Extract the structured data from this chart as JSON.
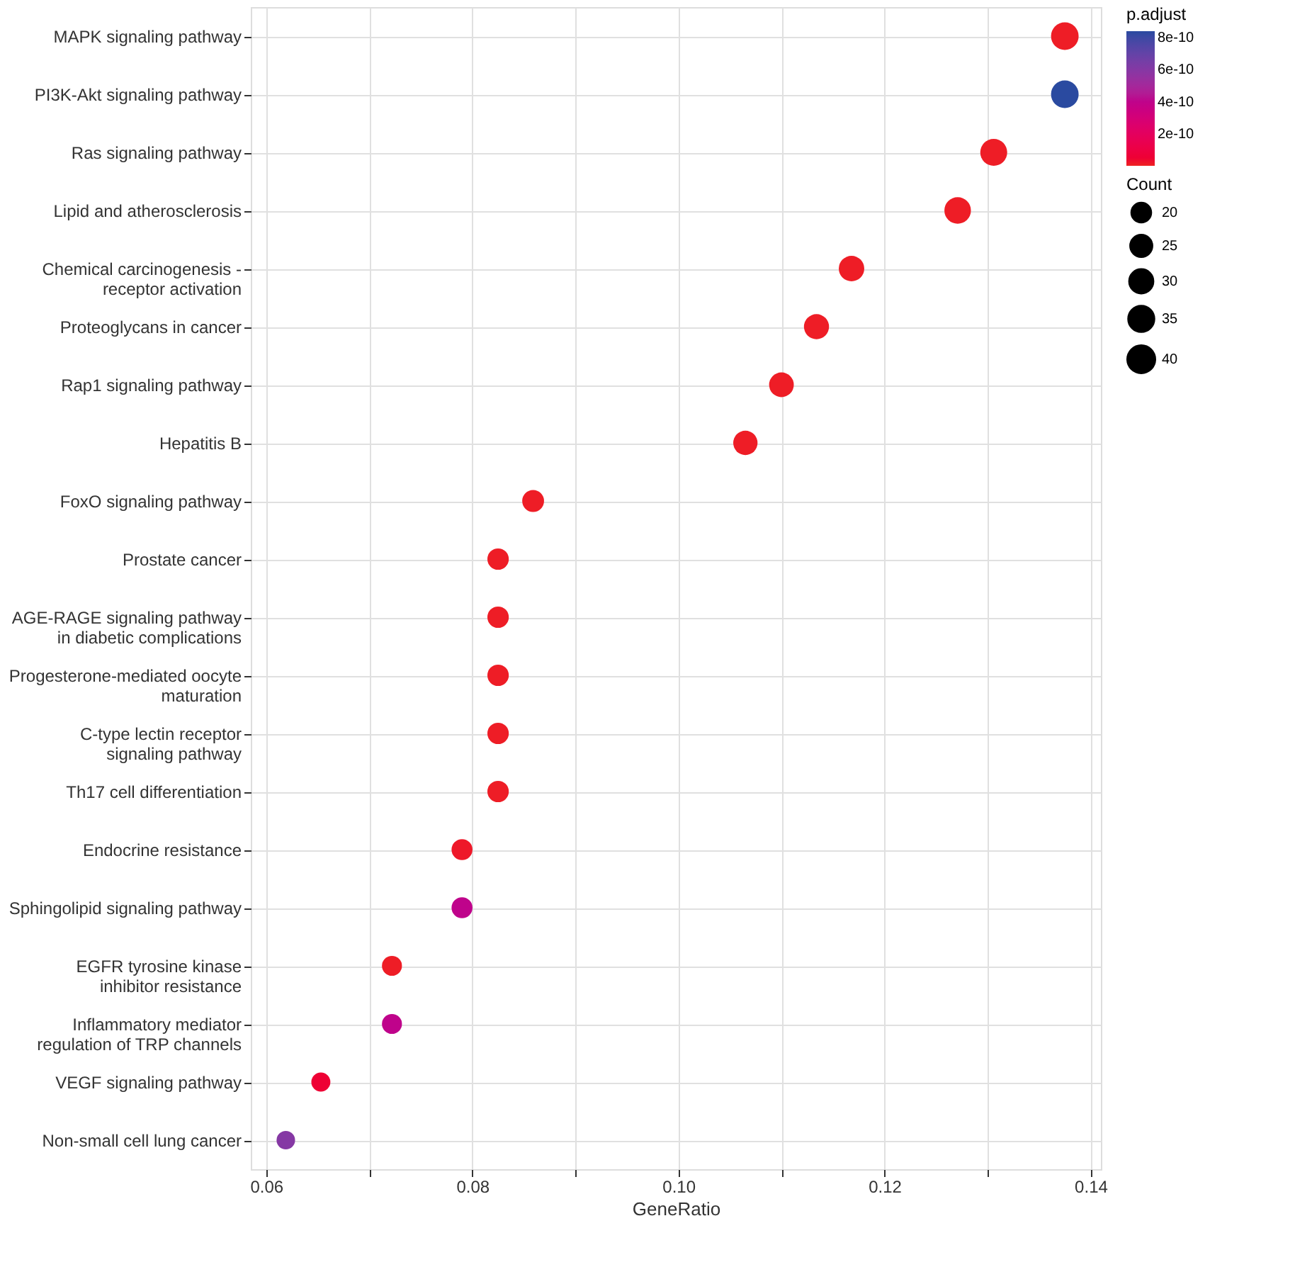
{
  "chart_data": {
    "type": "bubble",
    "categories": [
      "MAPK signaling pathway",
      "PI3K-Akt signaling pathway",
      "Ras signaling pathway",
      "Lipid and atherosclerosis",
      "Chemical carcinogenesis -\nreceptor activation",
      "Proteoglycans in cancer",
      "Rap1 signaling pathway",
      "Hepatitis B",
      "FoxO signaling pathway",
      "Prostate cancer",
      "AGE-RAGE signaling pathway\nin diabetic complications",
      "Progesterone-mediated oocyte\nmaturation",
      "C-type lectin receptor\nsignaling pathway",
      "Th17 cell differentiation",
      "Endocrine resistance",
      "Sphingolipid signaling pathway",
      "EGFR tyrosine kinase\ninhibitor resistance",
      "Inflammatory mediator\nregulation of TRP channels",
      "VEGF signaling pathway",
      "Non-small cell lung cancer"
    ],
    "orientation": "horizontal",
    "values": [
      0.1375,
      0.1375,
      0.1306,
      0.1271,
      0.1168,
      0.1134,
      0.11,
      0.1065,
      0.0859,
      0.0825,
      0.0825,
      0.0825,
      0.0825,
      0.0825,
      0.079,
      0.079,
      0.0722,
      0.0722,
      0.0653,
      0.0619
    ],
    "sizes": [
      40,
      40,
      38,
      37,
      34,
      33,
      32,
      31,
      25,
      24,
      24,
      24,
      24,
      24,
      23,
      23,
      21,
      21,
      19,
      18
    ],
    "cvalues": [
      1e-11,
      8.4e-10,
      1e-11,
      1e-11,
      1e-11,
      1e-11,
      1e-11,
      1e-11,
      1e-11,
      1e-11,
      1e-11,
      1e-11,
      1e-11,
      1e-11,
      2e-11,
      4e-10,
      1e-11,
      4e-10,
      5e-11,
      6e-10
    ],
    "xlabel": "GeneRatio",
    "xlim": [
      0.0585,
      0.141
    ],
    "xticks": [
      0.06,
      {
        "value": 0.07,
        "label": null
      },
      "0.08",
      {
        "value": 0.09,
        "label": null
      },
      {
        "value": 0.1,
        "label": "0.10"
      },
      {
        "value": 0.11,
        "label": null
      },
      {
        "value": 0.12,
        "label": "0.12"
      },
      {
        "value": 0.13,
        "label": null
      },
      {
        "value": 0.14,
        "label": "0.14"
      }
    ],
    "size_legend": [
      20,
      25,
      30,
      35,
      40
    ],
    "legend_title": "Count",
    "clabel": "p.adjust",
    "clim": [
      0,
      8.4e-10
    ],
    "cticks": [
      {
        "value": 2e-10,
        "label": "2e-10"
      },
      {
        "value": 4e-10,
        "label": "4e-10"
      },
      {
        "value": 6e-10,
        "label": "6e-10"
      },
      {
        "value": 8e-10,
        "label": "8e-10"
      }
    ],
    "grid": true
  }
}
